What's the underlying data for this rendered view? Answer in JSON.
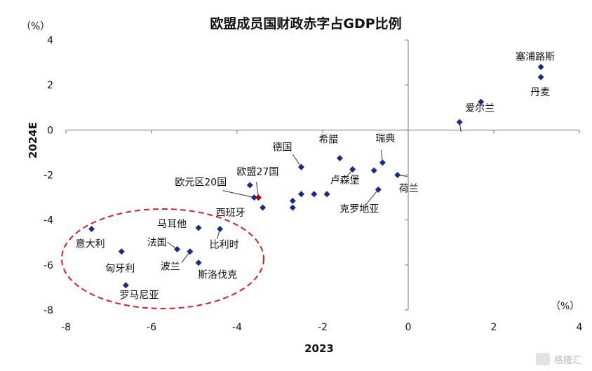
{
  "chart_data": {
    "type": "scatter",
    "title": "欧盟成员国财政赤字占GDP比例",
    "xlabel": "2023",
    "ylabel": "2024E",
    "x_unit": "（%）",
    "y_unit": "（%）",
    "xlim": [
      -8,
      4
    ],
    "ylim": [
      -8,
      4
    ],
    "x_ticks": [
      "-8",
      "-6",
      "-4",
      "-2",
      "0",
      "2",
      "4"
    ],
    "y_ticks": [
      "4",
      "2",
      "0",
      "-2",
      "-4",
      "-6",
      "-8"
    ],
    "negative_tick_color": "#cc0000",
    "grid": false,
    "marker_color": "#1a2a8c",
    "highlight_color": "#b00000",
    "ellipse_color": "#d42020",
    "points": [
      {
        "x": 3.1,
        "y": 2.8,
        "label": "塞浦路斯"
      },
      {
        "x": 3.1,
        "y": 2.35,
        "label": "丹麦"
      },
      {
        "x": 1.7,
        "y": 1.25,
        "label": ""
      },
      {
        "x": 1.2,
        "y": 0.35,
        "label": "爱尔兰"
      },
      {
        "x": -0.25,
        "y": -2.0,
        "label": "荷兰"
      },
      {
        "x": -0.6,
        "y": -1.45,
        "label": "瑞典"
      },
      {
        "x": -0.8,
        "y": -1.8,
        "label": ""
      },
      {
        "x": -0.7,
        "y": -2.65,
        "label": "克罗地亚"
      },
      {
        "x": -1.3,
        "y": -1.75,
        "label": "卢森堡"
      },
      {
        "x": -1.6,
        "y": -1.25,
        "label": "希腊"
      },
      {
        "x": -2.5,
        "y": -1.65,
        "label": "德国"
      },
      {
        "x": -1.9,
        "y": -2.85,
        "label": ""
      },
      {
        "x": -2.2,
        "y": -2.85,
        "label": ""
      },
      {
        "x": -2.5,
        "y": -2.85,
        "label": ""
      },
      {
        "x": -2.7,
        "y": -3.15,
        "label": ""
      },
      {
        "x": -2.7,
        "y": -3.45,
        "label": ""
      },
      {
        "x": -3.5,
        "y": -3.0,
        "label": "欧盟27国",
        "highlight": true
      },
      {
        "x": -3.6,
        "y": -3.0,
        "label": "欧元区20国"
      },
      {
        "x": -3.7,
        "y": -2.45,
        "label": ""
      },
      {
        "x": -3.4,
        "y": -3.45,
        "label": "西班牙"
      },
      {
        "x": -4.9,
        "y": -4.35,
        "label": "马耳他"
      },
      {
        "x": -4.4,
        "y": -4.4,
        "label": "比利时"
      },
      {
        "x": -7.4,
        "y": -4.4,
        "label": "意大利"
      },
      {
        "x": -5.4,
        "y": -5.3,
        "label": "法国"
      },
      {
        "x": -6.7,
        "y": -5.4,
        "label": "匈牙利"
      },
      {
        "x": -5.1,
        "y": -5.4,
        "label": "波兰"
      },
      {
        "x": -4.9,
        "y": -5.9,
        "label": "斯洛伐克"
      },
      {
        "x": -6.6,
        "y": -6.9,
        "label": "罗马尼亚"
      }
    ]
  },
  "watermark": "格隆汇"
}
